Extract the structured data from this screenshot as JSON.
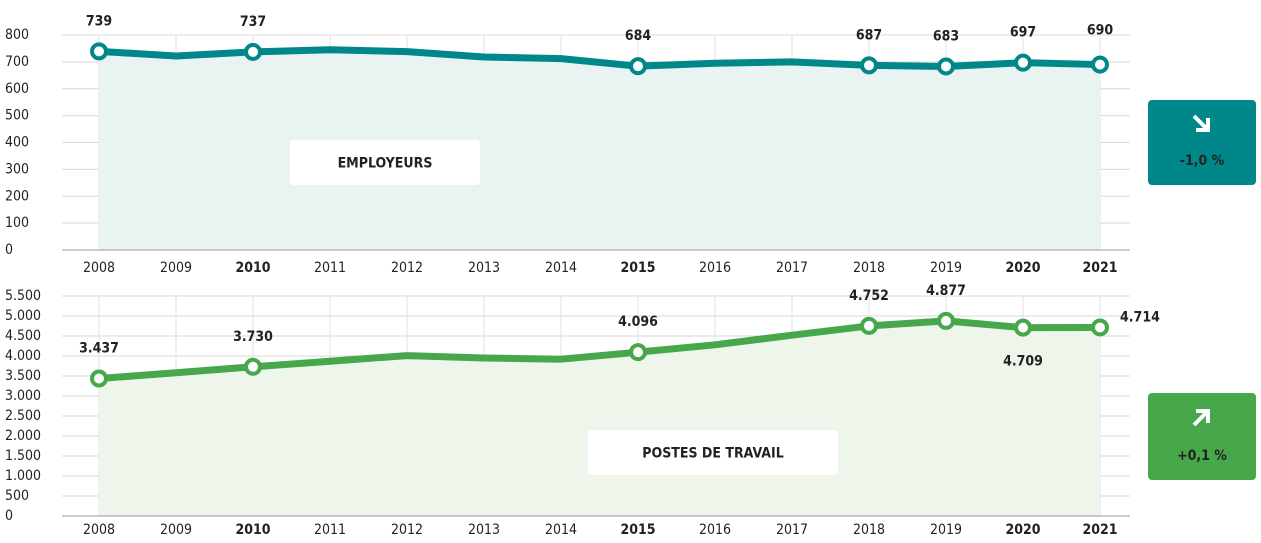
{
  "chart_data": [
    {
      "type": "line",
      "categories": [
        "2008",
        "2009",
        "2010",
        "2011",
        "2012",
        "2013",
        "2014",
        "2015",
        "2016",
        "2017",
        "2018",
        "2019",
        "2020",
        "2021"
      ],
      "values": [
        739,
        722,
        737,
        745,
        738,
        718,
        712,
        684,
        695,
        700,
        687,
        683,
        697,
        690
      ],
      "value_labels": [
        "739",
        null,
        "737",
        null,
        null,
        null,
        null,
        "684",
        null,
        null,
        "687",
        "683",
        "697",
        "690"
      ],
      "label_positions": [
        "above",
        null,
        "above",
        null,
        null,
        null,
        null,
        "above",
        null,
        null,
        "above",
        "above",
        "above",
        "above"
      ],
      "highlight": [
        false,
        false,
        true,
        false,
        false,
        false,
        false,
        true,
        false,
        false,
        false,
        false,
        true,
        true
      ],
      "ylim": [
        0,
        800
      ],
      "yticks": [
        0,
        100,
        200,
        300,
        400,
        500,
        600,
        700,
        800
      ],
      "grid": true,
      "color": "#00878a",
      "fill_color": "#e9f3f2",
      "label": "EMPLOYEURS",
      "change": "-1,0 %",
      "direction": "down"
    },
    {
      "type": "line",
      "categories": [
        "2008",
        "2009",
        "2010",
        "2011",
        "2012",
        "2013",
        "2014",
        "2015",
        "2016",
        "2017",
        "2018",
        "2019",
        "2020",
        "2021"
      ],
      "values": [
        3437,
        3580,
        3730,
        3870,
        4010,
        3950,
        3920,
        4096,
        4280,
        4520,
        4752,
        4877,
        4709,
        4714
      ],
      "value_labels": [
        "3.437",
        null,
        "3.730",
        null,
        null,
        null,
        null,
        "4.096",
        null,
        null,
        "4.752",
        "4.877",
        "4.709",
        "4.714"
      ],
      "label_positions": [
        "above",
        null,
        "above",
        null,
        null,
        null,
        null,
        "above",
        null,
        null,
        "above",
        "above",
        "below",
        "right"
      ],
      "highlight": [
        false,
        false,
        true,
        false,
        false,
        false,
        false,
        true,
        false,
        false,
        false,
        false,
        true,
        true
      ],
      "ylim": [
        0,
        5500
      ],
      "yticks": [
        0,
        500,
        {
          "value": 1000,
          "label": "1.000"
        },
        {
          "value": 1500,
          "label": "1.500"
        },
        {
          "value": 2000,
          "label": "2.000"
        },
        {
          "value": 2500,
          "label": "2.500"
        },
        {
          "value": 3000,
          "label": "3.000"
        },
        {
          "value": 3500,
          "label": "3.500"
        },
        {
          "value": 4000,
          "label": "4.000"
        },
        {
          "value": 4500,
          "label": "4.500"
        },
        {
          "value": 5000,
          "label": "5.000"
        },
        {
          "value": 5500,
          "label": "5.500"
        }
      ],
      "grid": true,
      "color": "#46a84b",
      "fill_color": "#eef6ec",
      "label": "POSTES DE TRAVAIL",
      "change": "+0,1 %",
      "direction": "up"
    }
  ]
}
